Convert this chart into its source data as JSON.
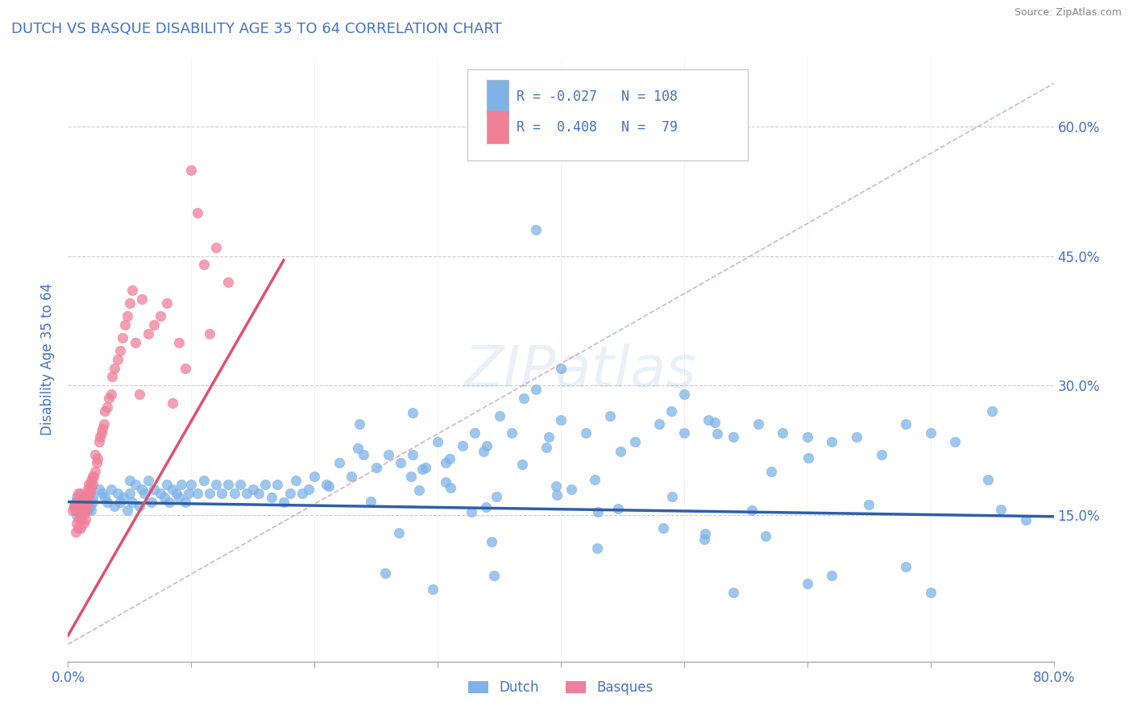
{
  "title": "DUTCH VS BASQUE DISABILITY AGE 35 TO 64 CORRELATION CHART",
  "source": "Source: ZipAtlas.com",
  "ylabel": "Disability Age 35 to 64",
  "xlim": [
    0.0,
    0.8
  ],
  "ylim": [
    -0.02,
    0.68
  ],
  "plot_ylim": [
    -0.02,
    0.68
  ],
  "dutch_color": "#7FB3E8",
  "basque_color": "#F08098",
  "blue": "#4472C4",
  "dutch_R": -0.027,
  "dutch_N": 108,
  "basque_R": 0.408,
  "basque_N": 79,
  "watermark": "ZIPatlas",
  "dutch_line_start_y": 0.165,
  "dutch_line_end_y": 0.148,
  "basque_line_start_x": 0.0,
  "basque_line_start_y": 0.01,
  "basque_line_end_x": 0.175,
  "basque_line_end_y": 0.445,
  "dutch_x": [
    0.005,
    0.006,
    0.007,
    0.007,
    0.008,
    0.009,
    0.01,
    0.01,
    0.011,
    0.012,
    0.013,
    0.013,
    0.014,
    0.015,
    0.016,
    0.017,
    0.018,
    0.019,
    0.02,
    0.02,
    0.025,
    0.028,
    0.03,
    0.032,
    0.035,
    0.038,
    0.04,
    0.042,
    0.045,
    0.048,
    0.05,
    0.05,
    0.052,
    0.055,
    0.058,
    0.06,
    0.062,
    0.065,
    0.068,
    0.07,
    0.075,
    0.078,
    0.08,
    0.082,
    0.085,
    0.088,
    0.09,
    0.092,
    0.095,
    0.098,
    0.1,
    0.105,
    0.11,
    0.115,
    0.12,
    0.125,
    0.13,
    0.135,
    0.14,
    0.145,
    0.15,
    0.155,
    0.16,
    0.165,
    0.17,
    0.175,
    0.18,
    0.185,
    0.19,
    0.195,
    0.2,
    0.21,
    0.22,
    0.23,
    0.24,
    0.25,
    0.26,
    0.27,
    0.28,
    0.29,
    0.3,
    0.31,
    0.32,
    0.33,
    0.34,
    0.35,
    0.36,
    0.37,
    0.38,
    0.39,
    0.4,
    0.42,
    0.44,
    0.46,
    0.48,
    0.5,
    0.52,
    0.54,
    0.56,
    0.58,
    0.6,
    0.62,
    0.64,
    0.66,
    0.68,
    0.7,
    0.72,
    0.75
  ],
  "dutch_y": [
    0.16,
    0.155,
    0.17,
    0.15,
    0.16,
    0.155,
    0.165,
    0.16,
    0.155,
    0.17,
    0.165,
    0.155,
    0.16,
    0.17,
    0.155,
    0.165,
    0.16,
    0.155,
    0.17,
    0.165,
    0.18,
    0.175,
    0.17,
    0.165,
    0.18,
    0.16,
    0.175,
    0.165,
    0.17,
    0.155,
    0.175,
    0.19,
    0.165,
    0.185,
    0.16,
    0.18,
    0.175,
    0.19,
    0.165,
    0.18,
    0.175,
    0.17,
    0.185,
    0.165,
    0.18,
    0.175,
    0.17,
    0.185,
    0.165,
    0.175,
    0.185,
    0.175,
    0.19,
    0.175,
    0.185,
    0.175,
    0.185,
    0.175,
    0.185,
    0.175,
    0.18,
    0.175,
    0.185,
    0.17,
    0.185,
    0.165,
    0.175,
    0.19,
    0.175,
    0.18,
    0.195,
    0.185,
    0.21,
    0.195,
    0.22,
    0.205,
    0.22,
    0.21,
    0.22,
    0.205,
    0.235,
    0.215,
    0.23,
    0.245,
    0.23,
    0.265,
    0.245,
    0.285,
    0.295,
    0.24,
    0.26,
    0.245,
    0.265,
    0.235,
    0.255,
    0.245,
    0.26,
    0.24,
    0.255,
    0.245,
    0.24,
    0.235,
    0.24,
    0.22,
    0.255,
    0.245,
    0.235,
    0.27
  ],
  "basque_x": [
    0.004,
    0.005,
    0.006,
    0.006,
    0.006,
    0.007,
    0.007,
    0.008,
    0.008,
    0.008,
    0.009,
    0.009,
    0.009,
    0.01,
    0.01,
    0.01,
    0.01,
    0.011,
    0.011,
    0.012,
    0.012,
    0.013,
    0.013,
    0.013,
    0.014,
    0.014,
    0.014,
    0.015,
    0.015,
    0.015,
    0.016,
    0.016,
    0.017,
    0.017,
    0.018,
    0.018,
    0.019,
    0.019,
    0.02,
    0.02,
    0.021,
    0.022,
    0.022,
    0.023,
    0.024,
    0.025,
    0.026,
    0.027,
    0.028,
    0.029,
    0.03,
    0.032,
    0.033,
    0.035,
    0.036,
    0.038,
    0.04,
    0.042,
    0.044,
    0.046,
    0.048,
    0.05,
    0.052,
    0.055,
    0.058,
    0.06,
    0.065,
    0.07,
    0.075,
    0.08,
    0.085,
    0.09,
    0.095,
    0.1,
    0.105,
    0.11,
    0.115,
    0.12,
    0.13
  ],
  "basque_y": [
    0.155,
    0.16,
    0.13,
    0.165,
    0.155,
    0.14,
    0.165,
    0.135,
    0.155,
    0.175,
    0.145,
    0.165,
    0.155,
    0.135,
    0.15,
    0.165,
    0.175,
    0.145,
    0.165,
    0.15,
    0.165,
    0.14,
    0.155,
    0.165,
    0.145,
    0.155,
    0.165,
    0.155,
    0.17,
    0.165,
    0.165,
    0.18,
    0.175,
    0.185,
    0.175,
    0.18,
    0.185,
    0.19,
    0.185,
    0.195,
    0.195,
    0.2,
    0.22,
    0.21,
    0.215,
    0.235,
    0.24,
    0.245,
    0.25,
    0.255,
    0.27,
    0.275,
    0.285,
    0.29,
    0.31,
    0.32,
    0.33,
    0.34,
    0.355,
    0.37,
    0.38,
    0.395,
    0.41,
    0.35,
    0.29,
    0.4,
    0.36,
    0.37,
    0.38,
    0.395,
    0.28,
    0.35,
    0.32,
    0.55,
    0.5,
    0.44,
    0.36,
    0.46,
    0.42
  ]
}
